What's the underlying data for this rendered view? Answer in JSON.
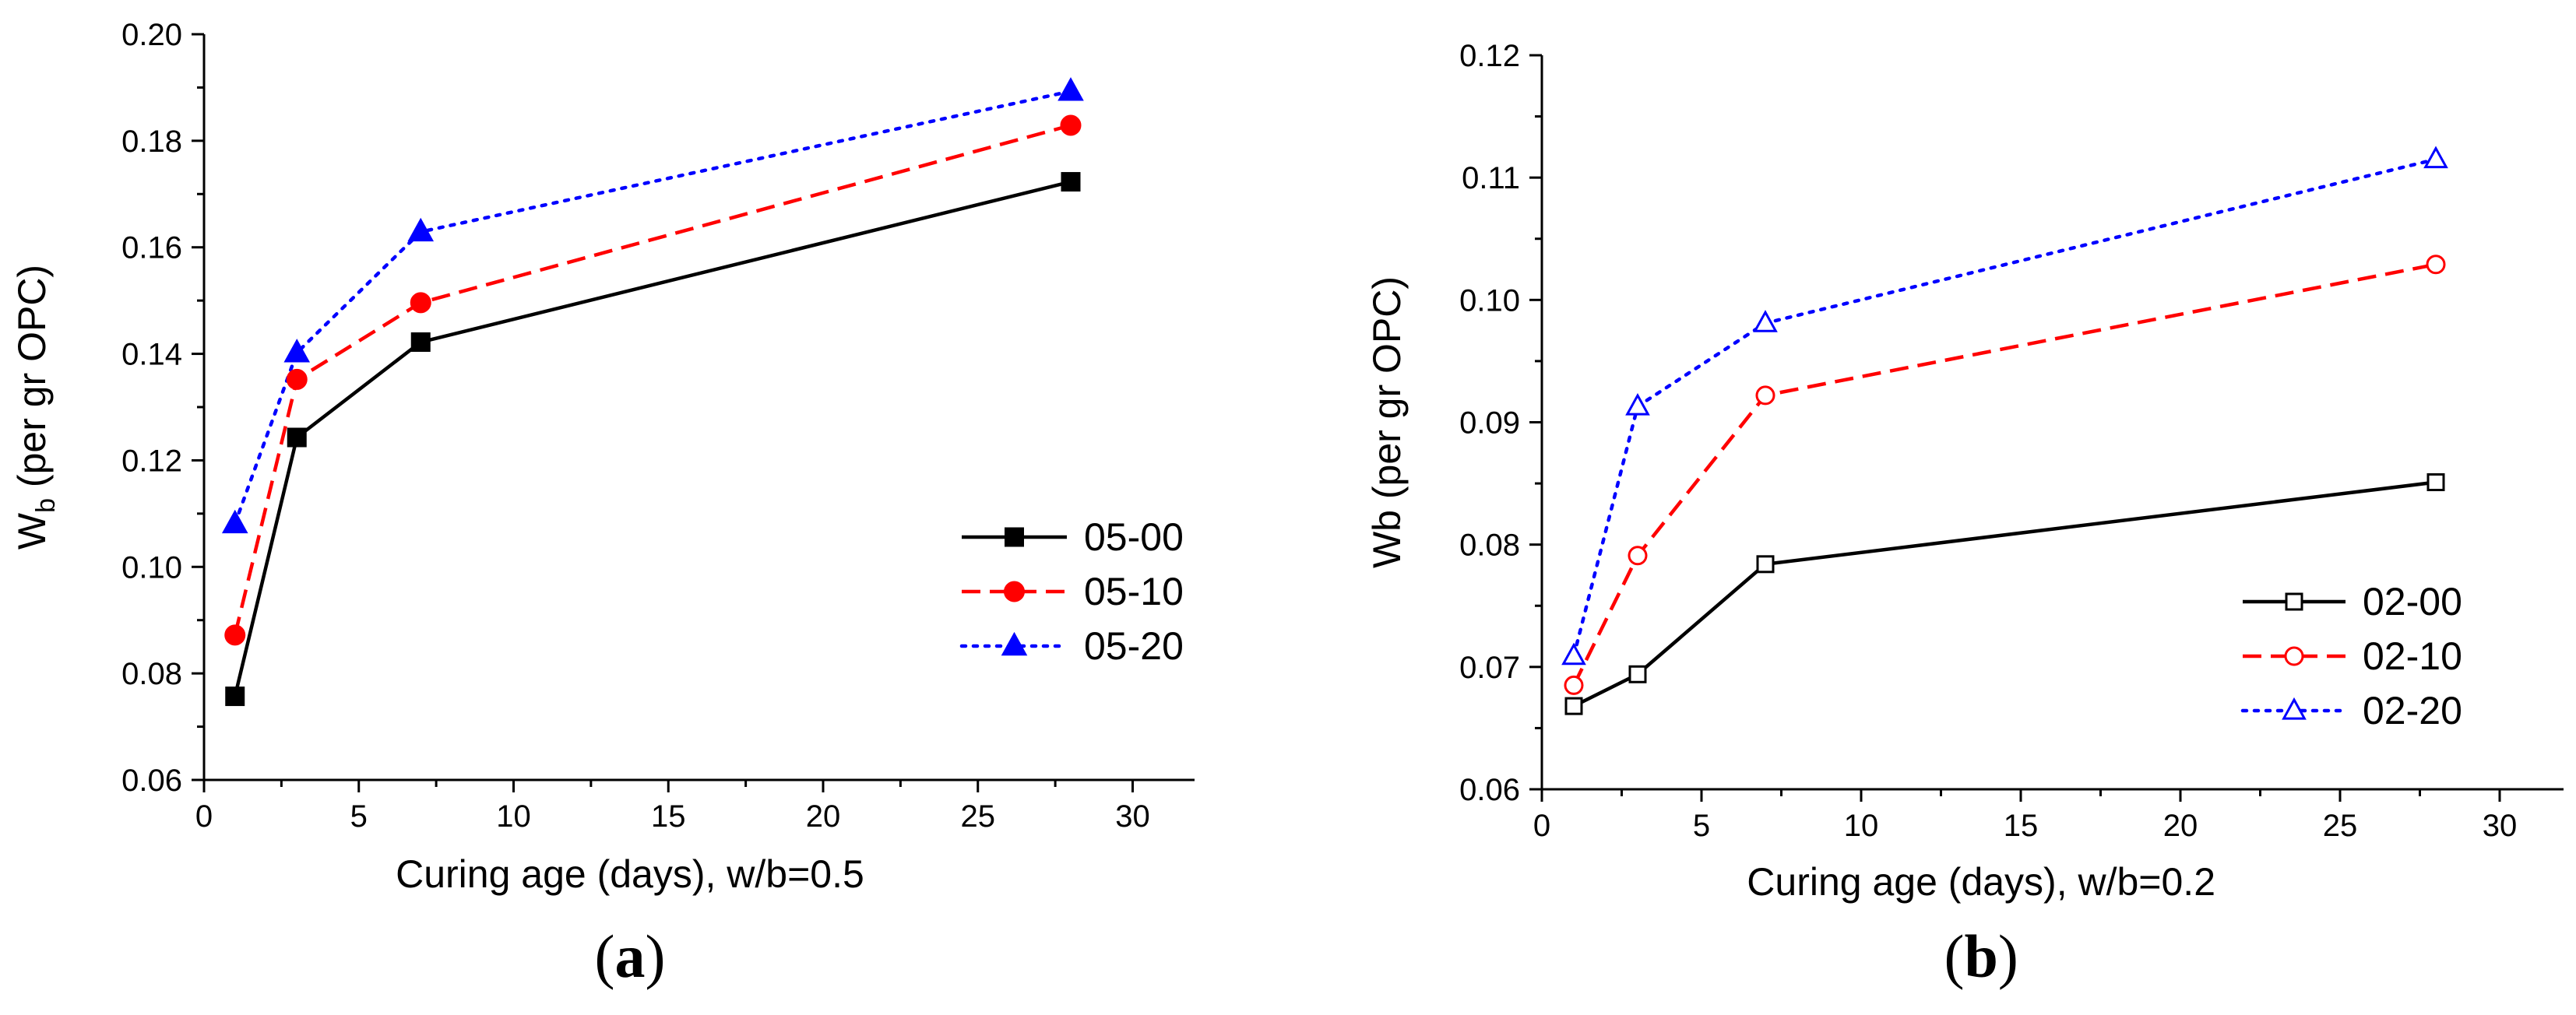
{
  "chart_data": [
    {
      "type": "line",
      "panel_label": "a",
      "xlabel": "Curing age (days), w/b=0.5",
      "ylabel_main": "W",
      "ylabel_sub": "b",
      "ylabel_rest": " (per gr OPC)",
      "xlim": [
        0,
        32
      ],
      "ylim": [
        0.06,
        0.2
      ],
      "xticks": [
        0,
        5,
        10,
        15,
        20,
        25,
        30
      ],
      "yticks": [
        0.06,
        0.08,
        0.1,
        0.12,
        0.14,
        0.16,
        0.18,
        0.2
      ],
      "ytick_labels": [
        "0.06",
        "0.08",
        "0.10",
        "0.12",
        "0.14",
        "0.16",
        "0.18",
        "0.20"
      ],
      "legend_position": "right",
      "x": [
        1,
        3,
        7,
        28
      ],
      "series": [
        {
          "name": "05-00",
          "values": [
            0.0757,
            0.1243,
            0.1422,
            0.1723
          ],
          "color": "#000000",
          "dash": "solid",
          "marker": "square",
          "filled": true
        },
        {
          "name": "05-10",
          "values": [
            0.0872,
            0.1352,
            0.1496,
            0.1829
          ],
          "color": "#ff0000",
          "dash": "dashed",
          "marker": "circle",
          "filled": true
        },
        {
          "name": "05-20",
          "values": [
            0.1081,
            0.1402,
            0.1629,
            0.1893
          ],
          "color": "#0000ff",
          "dash": "dotted",
          "marker": "triangle",
          "filled": true
        }
      ]
    },
    {
      "type": "line",
      "panel_label": "b",
      "xlabel": "Curing age (days), w/b=0.2",
      "ylabel_main": "Wb",
      "ylabel_sub": "",
      "ylabel_rest": " (per gr OPC)",
      "xlim": [
        0,
        32
      ],
      "ylim": [
        0.06,
        0.12
      ],
      "xticks": [
        0,
        5,
        10,
        15,
        20,
        25,
        30
      ],
      "yticks": [
        0.06,
        0.07,
        0.08,
        0.09,
        0.1,
        0.11,
        0.12
      ],
      "ytick_labels": [
        "0.06",
        "0.07",
        "0.08",
        "0.09",
        "0.10",
        "0.11",
        "0.12"
      ],
      "legend_position": "bottom-right",
      "x": [
        1,
        3,
        7,
        28
      ],
      "series": [
        {
          "name": "02-00",
          "values": [
            0.0668,
            0.0694,
            0.0784,
            0.0851
          ],
          "color": "#000000",
          "dash": "solid",
          "marker": "square",
          "filled": false
        },
        {
          "name": "02-10",
          "values": [
            0.0685,
            0.0791,
            0.0922,
            0.1029
          ],
          "color": "#ff0000",
          "dash": "dashed",
          "marker": "circle",
          "filled": false
        },
        {
          "name": "02-20",
          "values": [
            0.0709,
            0.0913,
            0.0981,
            0.1115
          ],
          "color": "#0000ff",
          "dash": "dotted",
          "marker": "triangle",
          "filled": false
        }
      ]
    }
  ]
}
